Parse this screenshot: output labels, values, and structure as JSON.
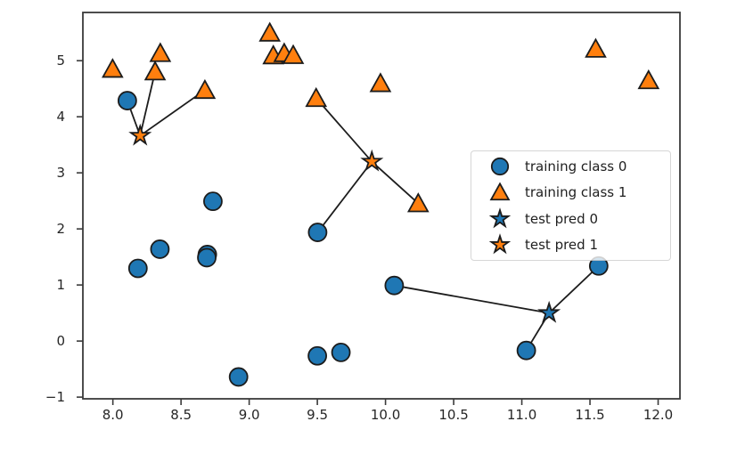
{
  "chart_data": {
    "type": "scatter",
    "title": "",
    "xlabel": "",
    "ylabel": "",
    "xlim": [
      7.78,
      12.16
    ],
    "ylim": [
      -1.03,
      5.86
    ],
    "grid": false,
    "axis_color": "#3a3a3a",
    "text_color": "#262626",
    "line_color": "#1c1c1c",
    "marker_edge_color": "#1c1c1c",
    "xticks": {
      "values": [
        8.0,
        8.5,
        9.0,
        9.5,
        10.0,
        10.5,
        11.0,
        11.5,
        12.0
      ],
      "labels": [
        "8.0",
        "8.5",
        "9.0",
        "9.5",
        "10.0",
        "10.5",
        "11.0",
        "11.5",
        "12.0"
      ]
    },
    "yticks": {
      "values": [
        -1,
        0,
        1,
        2,
        3,
        4,
        5
      ],
      "labels": [
        "−1",
        "0",
        "1",
        "2",
        "3",
        "4",
        "5"
      ]
    },
    "series": [
      {
        "name": "training class 0",
        "marker": "circle",
        "color": "#1f77b4",
        "points": [
          [
            11.033,
            -0.168
          ],
          [
            8.693,
            1.543
          ],
          [
            8.106,
            4.287
          ],
          [
            9.673,
            -0.203
          ],
          [
            8.689,
            1.487
          ],
          [
            8.922,
            -0.64
          ],
          [
            8.184,
            1.296
          ],
          [
            8.734,
            2.492
          ],
          [
            10.064,
            0.991
          ],
          [
            9.5,
            -0.264
          ],
          [
            8.345,
            1.638
          ],
          [
            9.502,
            1.938
          ],
          [
            11.564,
            1.339
          ]
        ]
      },
      {
        "name": "training class 1",
        "marker": "triangle-up",
        "color": "#ff7f0e",
        "points": [
          [
            9.963,
            4.597
          ],
          [
            11.542,
            5.211
          ],
          [
            8.31,
            4.806
          ],
          [
            11.93,
            4.649
          ],
          [
            8.348,
            5.134
          ],
          [
            8.675,
            4.476
          ],
          [
            9.177,
            5.093
          ],
          [
            10.24,
            2.455
          ],
          [
            9.491,
            4.332
          ],
          [
            9.257,
            5.133
          ],
          [
            7.998,
            4.853
          ],
          [
            9.323,
            5.098
          ],
          [
            9.151,
            5.498
          ]
        ]
      },
      {
        "name": "test pred 0",
        "marker": "star",
        "color": "#1f77b4",
        "points": [
          [
            11.2,
            0.5
          ]
        ]
      },
      {
        "name": "test pred 1",
        "marker": "star",
        "color": "#ff7f0e",
        "points": [
          [
            8.2,
            3.662
          ],
          [
            9.9,
            3.2
          ]
        ]
      }
    ],
    "connections": [
      {
        "from": [
          8.2,
          3.662
        ],
        "to": [
          [
            8.106,
            4.287
          ],
          [
            8.675,
            4.476
          ],
          [
            8.31,
            4.806
          ]
        ]
      },
      {
        "from": [
          9.9,
          3.2
        ],
        "to": [
          [
            10.24,
            2.455
          ],
          [
            9.491,
            4.332
          ],
          [
            9.502,
            1.938
          ]
        ]
      },
      {
        "from": [
          11.2,
          0.5
        ],
        "to": [
          [
            11.033,
            -0.168
          ],
          [
            11.564,
            1.339
          ],
          [
            10.064,
            0.991
          ]
        ]
      }
    ],
    "legend": {
      "position": "center right"
    }
  }
}
